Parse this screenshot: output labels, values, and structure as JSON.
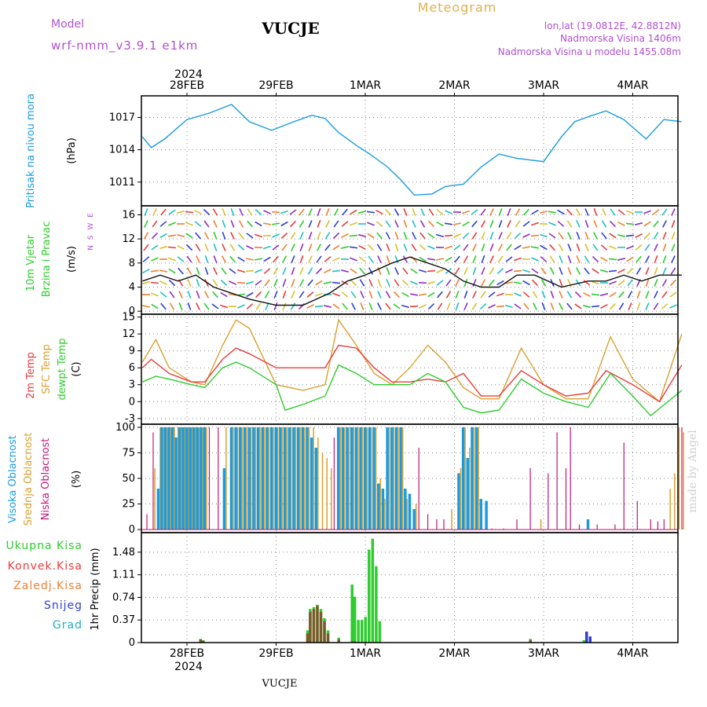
{
  "header": {
    "model_label": "Model",
    "model_value": "wrf-nmm_v3.9.1  e1km",
    "station": "VUCJE",
    "product": "Meteogram",
    "lonlat": "lon,lat (19.0812E, 42.8812N)",
    "elevation": "Nadmorska Visina 1406m",
    "model_elevation": "Nadmorska Visina u modelu 1455.08m",
    "footer_station": "VUCJE",
    "credit": "made by Angel"
  },
  "colors": {
    "pressure": "#1a9be0",
    "temp2m": "#e83c3c",
    "sfc": "#d9a030",
    "dewpt": "#2ecc2e",
    "high_cloud": "#1a9be0",
    "mid_cloud": "#d9a030",
    "low_cloud": "#c0187a",
    "precip_total": "#2ecc2e",
    "precip_conv": "#7a5a2a",
    "snow": "#3040d0",
    "grad": "#20b0c0",
    "title_purple": "#b050d0",
    "meteogram_orange": "#e0b050"
  },
  "time_axis": {
    "top_year": "2024",
    "bottom_year": "2024",
    "dates": [
      "28FEB",
      "29FEB",
      "1MAR",
      "2MAR",
      "3MAR",
      "4MAR"
    ]
  },
  "panels": {
    "pressure": {
      "label": "Pritisak na nivou mora",
      "unit": "(hPa)",
      "ticks": [
        "1017",
        "1014",
        "1011"
      ]
    },
    "wind": {
      "label1": "10m Vjetar",
      "label2": "Brzina i Pravac",
      "unit": "(m/s)",
      "compass": "N S W E",
      "ticks": [
        "16",
        "12",
        "8",
        "4",
        "0"
      ]
    },
    "temp": {
      "label1": "2m Temp",
      "label2": "SFC Temp",
      "label3": "dewpt Temp",
      "unit": "(C)",
      "ticks": [
        "15",
        "12",
        "9",
        "6",
        "3",
        "0",
        "-3"
      ]
    },
    "cloud": {
      "label1": "Visoka Oblacnost",
      "label2": "Srednja Oblacnost",
      "label3": "Niska Oblacnost",
      "unit": "(%)",
      "ticks": [
        "100",
        "75",
        "50",
        "25",
        "0"
      ]
    },
    "precip": {
      "unit": "1hr Precip (mm)",
      "legend": [
        "Ukupna Kisa",
        "Konvek.Kisa",
        "Zaledj.Kisa",
        "Snijeg",
        "Grad"
      ],
      "ticks": [
        "1.48",
        "1.11",
        "0.74",
        "0.37",
        "0"
      ]
    }
  },
  "chart_data": {
    "type": "line",
    "x_units": "days since 27FEB 12Z",
    "pressure": {
      "x": [
        0,
        0.1,
        0.25,
        0.5,
        0.75,
        1.0,
        1.2,
        1.45,
        1.7,
        1.9,
        2.05,
        2.2,
        2.4,
        2.55,
        2.75,
        2.9,
        3.05,
        3.25,
        3.4,
        3.6,
        3.8,
        4.0,
        4.2,
        4.5,
        4.7,
        4.85,
        5.05,
        5.2,
        5.4,
        5.65,
        5.85,
        6.05
      ],
      "y": [
        1015.2,
        1014.2,
        1015.0,
        1016.8,
        1017.4,
        1018.2,
        1016.6,
        1015.8,
        1016.6,
        1017.2,
        1016.9,
        1015.6,
        1014.4,
        1013.6,
        1012.4,
        1011.2,
        1009.8,
        1009.9,
        1010.6,
        1010.8,
        1012.4,
        1013.6,
        1013.2,
        1012.9,
        1015.2,
        1016.6,
        1017.2,
        1017.6,
        1016.8,
        1015.0,
        1016.8,
        1016.6
      ]
    },
    "wind_speed": {
      "x": [
        0,
        0.2,
        0.4,
        0.6,
        0.8,
        1.0,
        1.2,
        1.5,
        1.8,
        2.1,
        2.3,
        2.5,
        2.8,
        3.0,
        3.2,
        3.4,
        3.6,
        3.8,
        4.0,
        4.2,
        4.4,
        4.7,
        5.0,
        5.2,
        5.4,
        5.6,
        5.8,
        6.05
      ],
      "y": [
        5,
        6,
        5,
        6,
        4,
        3,
        2,
        1,
        1,
        3,
        5,
        6,
        8,
        9,
        8,
        7,
        5,
        4,
        4,
        6,
        6,
        4,
        5,
        5,
        6,
        5,
        6,
        6
      ]
    },
    "temp_2m": {
      "x": [
        0,
        0.1,
        0.3,
        0.55,
        0.7,
        0.9,
        1.05,
        1.2,
        1.5,
        1.8,
        2.05,
        2.2,
        2.4,
        2.6,
        2.8,
        3.0,
        3.2,
        3.4,
        3.6,
        3.8,
        4.0,
        4.25,
        4.5,
        4.75,
        5.0,
        5.2,
        5.5,
        5.8,
        6.05
      ],
      "y": [
        6,
        7.5,
        5,
        3.5,
        3.5,
        7.5,
        9.5,
        8.5,
        6,
        6,
        6,
        10,
        9.5,
        6,
        3.5,
        3.5,
        4,
        3.5,
        5,
        1,
        1,
        5.5,
        3,
        1,
        1.5,
        5.5,
        3,
        0,
        6.5
      ]
    },
    "temp_sfc": {
      "x": [
        0,
        0.15,
        0.3,
        0.55,
        0.7,
        0.9,
        1.05,
        1.2,
        1.5,
        1.8,
        2.05,
        2.2,
        2.4,
        2.6,
        2.8,
        3.0,
        3.2,
        3.4,
        3.6,
        3.8,
        4.0,
        4.25,
        4.5,
        4.75,
        5.0,
        5.25,
        5.5,
        5.8,
        6.05
      ],
      "y": [
        7,
        11,
        6,
        3.5,
        3,
        10,
        14.5,
        13,
        3,
        2,
        3,
        14.5,
        10,
        5,
        3,
        6,
        10,
        7,
        2.5,
        0.5,
        0.5,
        9.5,
        3,
        0.5,
        0.5,
        11.5,
        4,
        0,
        12
      ]
    },
    "dewpoint": {
      "x": [
        0,
        0.15,
        0.3,
        0.55,
        0.7,
        0.9,
        1.05,
        1.2,
        1.5,
        1.6,
        1.8,
        2.05,
        2.2,
        2.4,
        2.6,
        2.8,
        3.0,
        3.2,
        3.4,
        3.6,
        3.8,
        4.0,
        4.25,
        4.5,
        4.75,
        5.0,
        5.25,
        5.5,
        5.7,
        6.05
      ],
      "y": [
        3.5,
        4.5,
        4,
        3,
        2.5,
        6,
        7,
        6,
        3,
        -1.5,
        -0.5,
        1,
        6.5,
        5,
        3,
        3,
        3,
        5,
        3.5,
        -1,
        -2,
        -1.5,
        4,
        1.5,
        0,
        -1,
        5,
        1,
        -2.5,
        2
      ]
    },
    "cloud": {
      "bars": [
        {
          "x": 0.05,
          "low": 15
        },
        {
          "x": 0.12,
          "mid": 60,
          "low": 95
        },
        {
          "x": 0.18,
          "high": 40,
          "mid": 100
        },
        {
          "x": 0.22,
          "high": 100,
          "mid": 100
        },
        {
          "x": 0.26,
          "high": 100,
          "mid": 100
        },
        {
          "x": 0.3,
          "high": 100,
          "mid": 100
        },
        {
          "x": 0.34,
          "high": 100,
          "mid": 100
        },
        {
          "x": 0.38,
          "high": 90,
          "mid": 100
        },
        {
          "x": 0.42,
          "high": 100,
          "mid": 100
        },
        {
          "x": 0.46,
          "high": 100,
          "mid": 100
        },
        {
          "x": 0.5,
          "high": 100,
          "mid": 100
        },
        {
          "x": 0.54,
          "high": 100,
          "mid": 100
        },
        {
          "x": 0.58,
          "high": 100,
          "mid": 100
        },
        {
          "x": 0.62,
          "high": 100,
          "mid": 100
        },
        {
          "x": 0.66,
          "high": 100,
          "mid": 100
        },
        {
          "x": 0.7,
          "high": 100,
          "mid": 100
        },
        {
          "x": 0.75,
          "low": 100
        },
        {
          "x": 0.85,
          "low": 100
        },
        {
          "x": 0.92,
          "high": 60,
          "mid": 100
        },
        {
          "x": 1.0,
          "high": 100,
          "mid": 100
        },
        {
          "x": 1.05,
          "high": 100,
          "mid": 100
        },
        {
          "x": 1.1,
          "high": 100,
          "mid": 100
        },
        {
          "x": 1.15,
          "high": 100,
          "mid": 100
        },
        {
          "x": 1.2,
          "high": 100,
          "mid": 100
        },
        {
          "x": 1.25,
          "high": 100,
          "mid": 100
        },
        {
          "x": 1.3,
          "high": 100,
          "mid": 100
        },
        {
          "x": 1.35,
          "high": 100,
          "mid": 100
        },
        {
          "x": 1.4,
          "high": 100,
          "mid": 100
        },
        {
          "x": 1.45,
          "high": 100,
          "mid": 100
        },
        {
          "x": 1.5,
          "high": 100,
          "mid": 100
        },
        {
          "x": 1.55,
          "high": 100,
          "mid": 100
        },
        {
          "x": 1.6,
          "high": 100,
          "mid": 100
        },
        {
          "x": 1.65,
          "high": 100,
          "mid": 100
        },
        {
          "x": 1.7,
          "high": 100,
          "mid": 100
        },
        {
          "x": 1.75,
          "high": 100,
          "mid": 100
        },
        {
          "x": 1.8,
          "high": 100,
          "mid": 100
        },
        {
          "x": 1.85,
          "high": 100,
          "mid": 100
        },
        {
          "x": 1.9,
          "high": 90,
          "mid": 100
        },
        {
          "x": 1.95,
          "high": 80,
          "mid": 90
        },
        {
          "x": 2.0,
          "mid": 75
        },
        {
          "x": 2.05,
          "mid": 70
        },
        {
          "x": 2.1,
          "mid": 60
        },
        {
          "x": 2.15,
          "low": 90
        },
        {
          "x": 2.2,
          "high": 100,
          "mid": 100
        },
        {
          "x": 2.25,
          "high": 100,
          "mid": 100
        },
        {
          "x": 2.3,
          "high": 100,
          "mid": 100
        },
        {
          "x": 2.35,
          "high": 100,
          "mid": 100
        },
        {
          "x": 2.4,
          "high": 100,
          "mid": 100
        },
        {
          "x": 2.45,
          "high": 100,
          "mid": 100
        },
        {
          "x": 2.5,
          "high": 100,
          "mid": 100
        },
        {
          "x": 2.55,
          "high": 100,
          "mid": 100
        },
        {
          "x": 2.6,
          "high": 100,
          "mid": 100
        },
        {
          "x": 2.65,
          "high": 45,
          "mid": 50
        },
        {
          "x": 2.7,
          "high": 40,
          "mid": 30
        },
        {
          "x": 2.75,
          "high": 100,
          "mid": 100
        },
        {
          "x": 2.8,
          "high": 100,
          "mid": 100
        },
        {
          "x": 2.85,
          "high": 100,
          "mid": 100
        },
        {
          "x": 2.9,
          "high": 100,
          "mid": 100
        },
        {
          "x": 2.95,
          "high": 40,
          "mid": 30
        },
        {
          "x": 3.0,
          "high": 35
        },
        {
          "x": 3.05,
          "high": 20,
          "mid": 25
        },
        {
          "x": 3.1,
          "low": 80
        },
        {
          "x": 3.2,
          "low": 15
        },
        {
          "x": 3.3,
          "low": 10
        },
        {
          "x": 3.38,
          "low": 10
        },
        {
          "x": 3.45,
          "mid": 20
        },
        {
          "x": 3.55,
          "high": 55,
          "mid": 60
        },
        {
          "x": 3.6,
          "high": 100,
          "mid": 100
        },
        {
          "x": 3.65,
          "high": 70,
          "mid": 80
        },
        {
          "x": 3.7,
          "high": 100,
          "mid": 100
        },
        {
          "x": 3.75,
          "high": 100,
          "mid": 100
        },
        {
          "x": 3.8,
          "high": 30
        },
        {
          "x": 3.86,
          "high": 28
        },
        {
          "x": 3.92,
          "low": 1
        },
        {
          "x": 4.05,
          "low": 1
        },
        {
          "x": 4.2,
          "low": 10
        },
        {
          "x": 4.35,
          "low": 60
        },
        {
          "x": 4.45,
          "mid": 10
        },
        {
          "x": 4.55,
          "low": 55
        },
        {
          "x": 4.65,
          "low": 95
        },
        {
          "x": 4.75,
          "low": 60
        },
        {
          "x": 4.8,
          "low": 100
        },
        {
          "x": 4.9,
          "low": 5
        },
        {
          "x": 5.0,
          "high": 10
        },
        {
          "x": 5.1,
          "low": 5
        },
        {
          "x": 5.3,
          "low": 5
        },
        {
          "x": 5.4,
          "low": 85
        },
        {
          "x": 5.55,
          "low": 28
        },
        {
          "x": 5.7,
          "low": 10
        },
        {
          "x": 5.78,
          "low": 8
        },
        {
          "x": 5.85,
          "low": 10
        },
        {
          "x": 5.9,
          "mid": 40
        },
        {
          "x": 5.95,
          "mid": 55
        },
        {
          "x": 6.0,
          "mid": 100
        },
        {
          "x": 6.05,
          "mid": 95,
          "low": 100
        }
      ]
    },
    "precip": {
      "bars": [
        {
          "x": 0.65,
          "total": 0.06,
          "conv": 0.05
        },
        {
          "x": 0.68,
          "total": 0.04,
          "conv": 0.03
        },
        {
          "x": 1.85,
          "total": 0.2,
          "conv": 0.15
        },
        {
          "x": 1.88,
          "total": 0.55,
          "conv": 0.5
        },
        {
          "x": 1.92,
          "total": 0.58,
          "conv": 0.55
        },
        {
          "x": 1.96,
          "total": 0.62,
          "conv": 0.6
        },
        {
          "x": 2.0,
          "total": 0.55,
          "conv": 0.5
        },
        {
          "x": 2.04,
          "total": 0.4,
          "conv": 0.35
        },
        {
          "x": 2.08,
          "total": 0.2,
          "conv": 0.15
        },
        {
          "x": 2.2,
          "total": 0.08,
          "conv": 0.05
        },
        {
          "x": 2.35,
          "total": 0.95,
          "conv": 0.02
        },
        {
          "x": 2.38,
          "total": 0.75,
          "conv": 0.02
        },
        {
          "x": 2.42,
          "total": 0.37,
          "conv": 0.01
        },
        {
          "x": 2.46,
          "total": 0.37
        },
        {
          "x": 2.5,
          "total": 0.42
        },
        {
          "x": 2.54,
          "total": 1.52
        },
        {
          "x": 2.58,
          "total": 1.7
        },
        {
          "x": 2.62,
          "total": 1.25
        },
        {
          "x": 2.66,
          "total": 0.35
        },
        {
          "x": 4.35,
          "total": 0.06,
          "conv": 0.04
        },
        {
          "x": 4.95,
          "total": 0.04
        },
        {
          "x": 4.98,
          "snow": 0.18
        },
        {
          "x": 5.02,
          "snow": 0.1
        }
      ]
    }
  }
}
